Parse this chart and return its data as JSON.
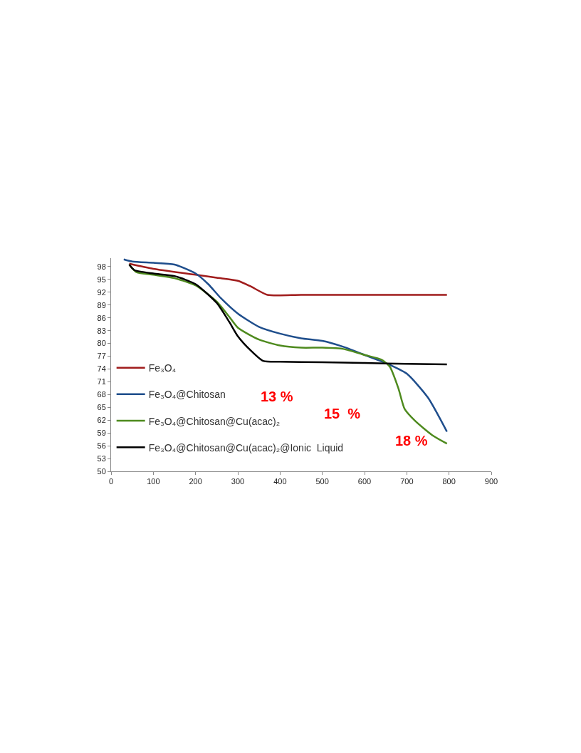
{
  "chart_data": {
    "type": "line",
    "xlim": [
      0,
      900
    ],
    "xticks": [
      0,
      100,
      200,
      300,
      400,
      500,
      600,
      700,
      800,
      900
    ],
    "ylim": [
      50,
      100
    ],
    "yticks": [
      50,
      53,
      56,
      59,
      62,
      65,
      68,
      71,
      74,
      77,
      80,
      83,
      86,
      89,
      92,
      95,
      98
    ],
    "legend": "bottom left",
    "marker": "none",
    "line_style": "solid",
    "series": [
      {
        "name": "Fe₃O₄",
        "color": "#a01c1c",
        "x": [
          43,
          100,
          200,
          250,
          300,
          330,
          370,
          450,
          600,
          795
        ],
        "values": [
          98.7,
          97.5,
          96.1,
          95.4,
          94.7,
          93.4,
          91.4,
          91.4,
          91.4,
          91.4
        ]
      },
      {
        "name": "Fe₃O₄@Chitosan",
        "color": "#1f4e8c",
        "x": [
          30,
          50,
          100,
          150,
          200,
          230,
          260,
          300,
          350,
          400,
          450,
          500,
          550,
          600,
          650,
          700,
          750,
          795
        ],
        "values": [
          99.7,
          99.2,
          98.9,
          98.5,
          96.4,
          93.9,
          90.6,
          87.0,
          83.9,
          82.3,
          81.2,
          80.6,
          79.2,
          77.3,
          75.4,
          72.9,
          67.3,
          59.3
        ]
      },
      {
        "name": "Fe₃O₄@Chitosan@Cu(acac)₂",
        "color": "#4e8a1e",
        "x": [
          43,
          60,
          100,
          150,
          200,
          250,
          280,
          300,
          350,
          400,
          450,
          500,
          550,
          600,
          640,
          660,
          680,
          695,
          720,
          760,
          795
        ],
        "values": [
          98.5,
          96.7,
          96.1,
          95.3,
          93.6,
          89.8,
          86.2,
          83.7,
          80.9,
          79.5,
          79.0,
          79.0,
          78.7,
          77.3,
          76.2,
          74.5,
          69.5,
          64.6,
          61.8,
          58.5,
          56.5
        ]
      },
      {
        "name": "Fe₃O₄@Chitosan@Cu(acac)₂@Ionic  Liquid",
        "color": "#000000",
        "x": [
          43,
          55,
          100,
          150,
          200,
          250,
          280,
          300,
          330,
          360,
          400,
          500,
          600,
          700,
          795
        ],
        "values": [
          98.5,
          97.2,
          96.4,
          95.8,
          93.9,
          89.5,
          85.0,
          81.7,
          78.4,
          75.9,
          75.7,
          75.6,
          75.4,
          75.2,
          75.1
        ]
      }
    ],
    "annotations": [
      "13 %",
      "15  %",
      "18 %"
    ]
  }
}
